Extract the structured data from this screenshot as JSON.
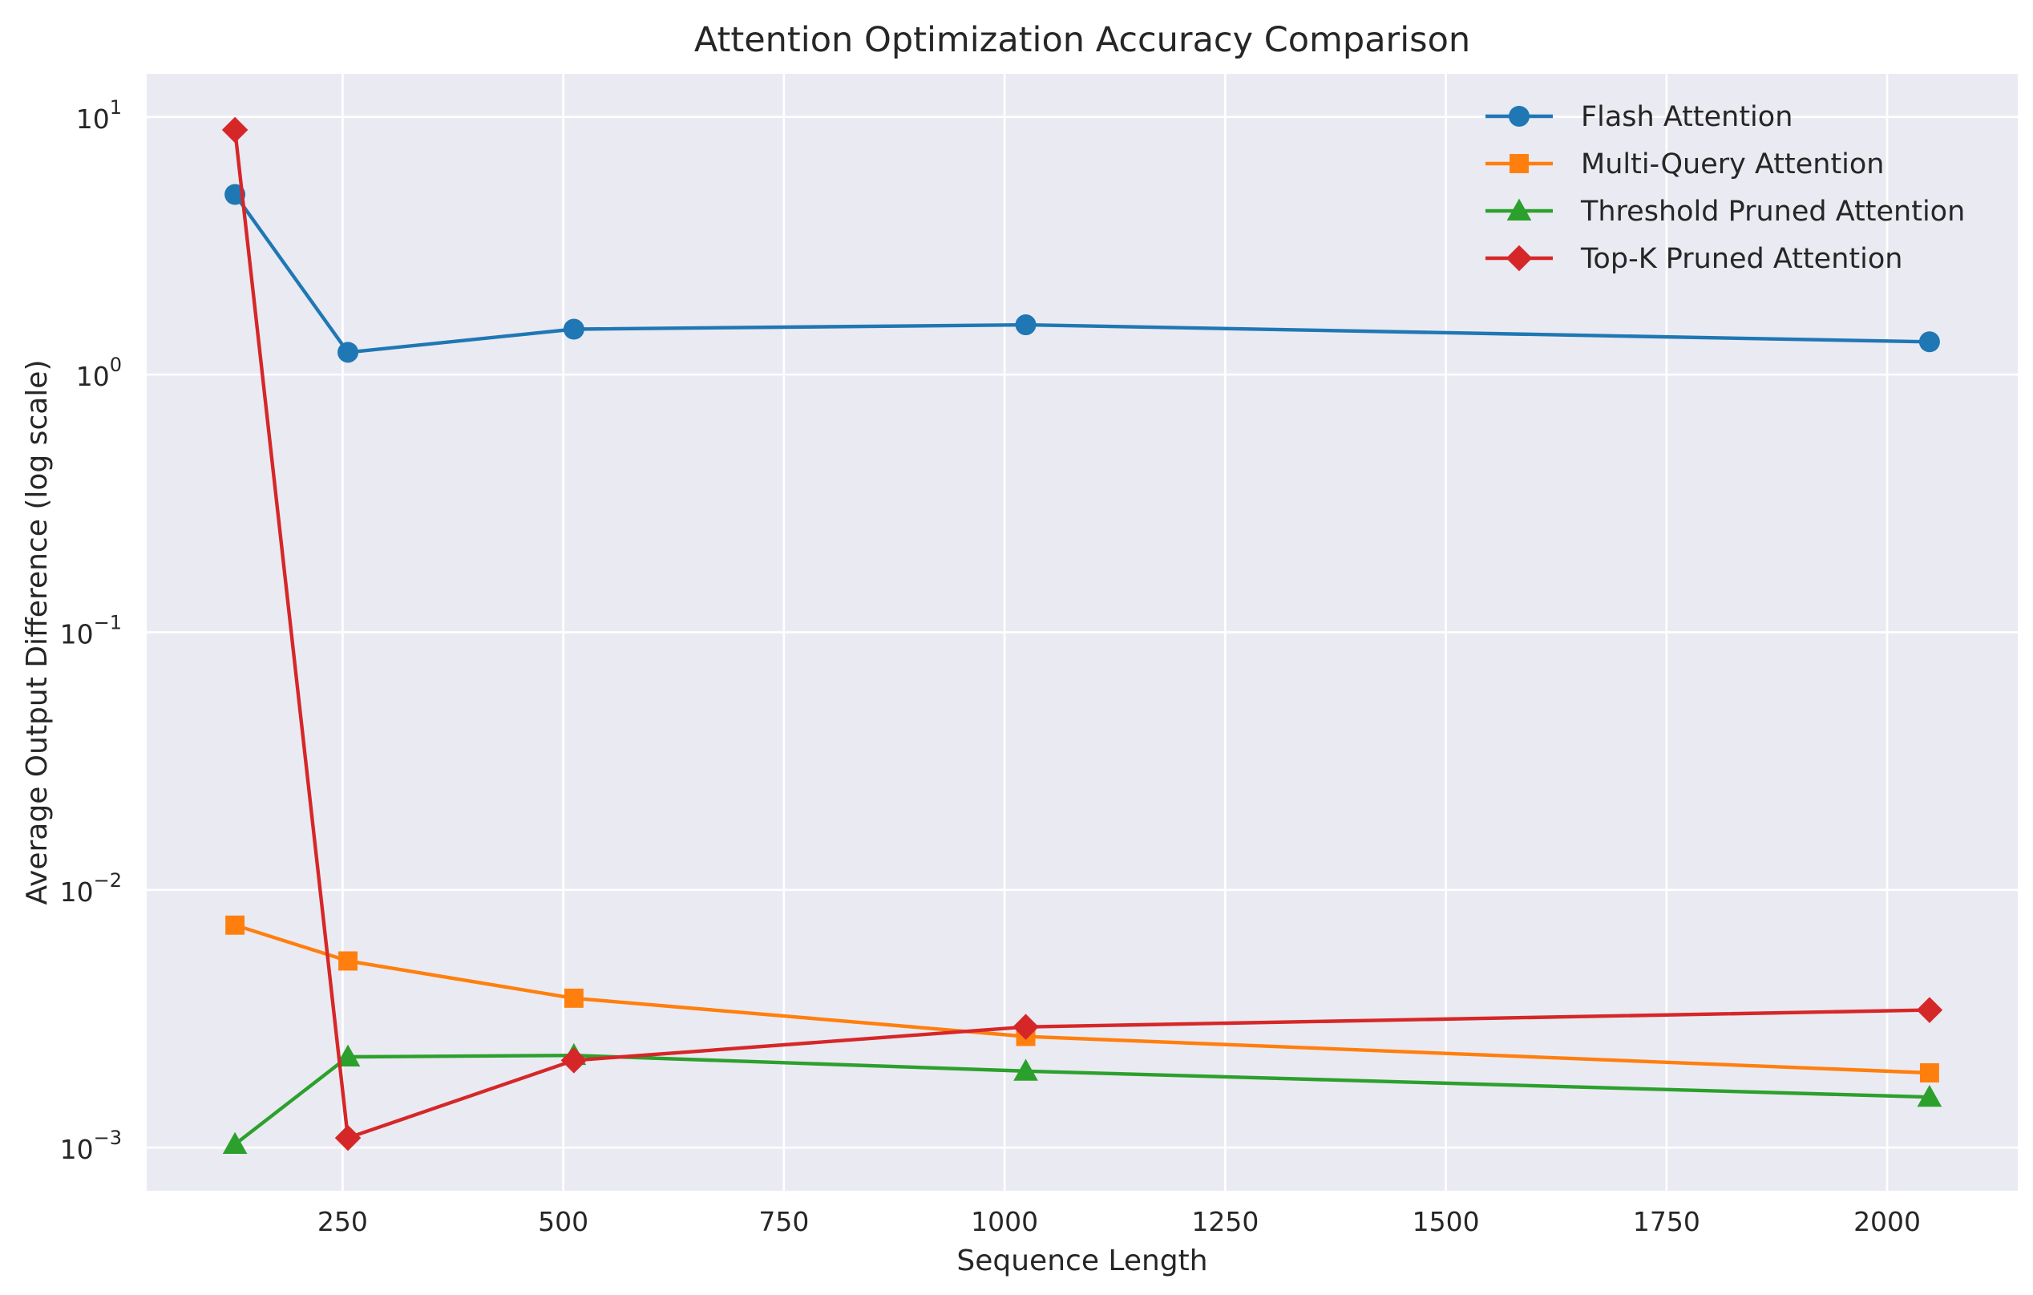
{
  "chart_data": {
    "type": "line",
    "title": "Attention Optimization Accuracy Comparison",
    "xlabel": "Sequence Length",
    "ylabel": "Average Output Difference (log scale)",
    "x": [
      128,
      256,
      512,
      1024,
      2048
    ],
    "xlim": [
      28,
      2148
    ],
    "ylim": [
      0.00068,
      14.7
    ],
    "yscale": "log",
    "grid": true,
    "legend_position": "top-right",
    "x_ticks": [
      250,
      500,
      750,
      1000,
      1250,
      1500,
      1750,
      2000
    ],
    "x_tick_labels": [
      "250",
      "500",
      "750",
      "1000",
      "1250",
      "1500",
      "1750",
      "2000"
    ],
    "y_ticks": [
      {
        "value": 10,
        "base": "10",
        "exp": "1"
      },
      {
        "value": 1,
        "base": "10",
        "exp": "0"
      },
      {
        "value": 0.1,
        "base": "10",
        "exp": "−1"
      },
      {
        "value": 0.01,
        "base": "10",
        "exp": "−2"
      },
      {
        "value": 0.001,
        "base": "10",
        "exp": "−3"
      }
    ],
    "series": [
      {
        "name": "Flash Attention",
        "color": "#1f77b4",
        "marker": "circle",
        "values": [
          5.0,
          1.22,
          1.5,
          1.56,
          1.34
        ]
      },
      {
        "name": "Multi-Query Attention",
        "color": "#ff7f0e",
        "marker": "square",
        "values": [
          0.0073,
          0.0053,
          0.0038,
          0.0027,
          0.00195
        ]
      },
      {
        "name": "Threshold Pruned Attention",
        "color": "#2ca02c",
        "marker": "triangle",
        "values": [
          0.00103,
          0.00225,
          0.00228,
          0.00198,
          0.00157
        ]
      },
      {
        "name": "Top-K Pruned Attention",
        "color": "#d62728",
        "marker": "diamond",
        "values": [
          8.9,
          0.00109,
          0.00218,
          0.00294,
          0.00342
        ]
      }
    ]
  }
}
